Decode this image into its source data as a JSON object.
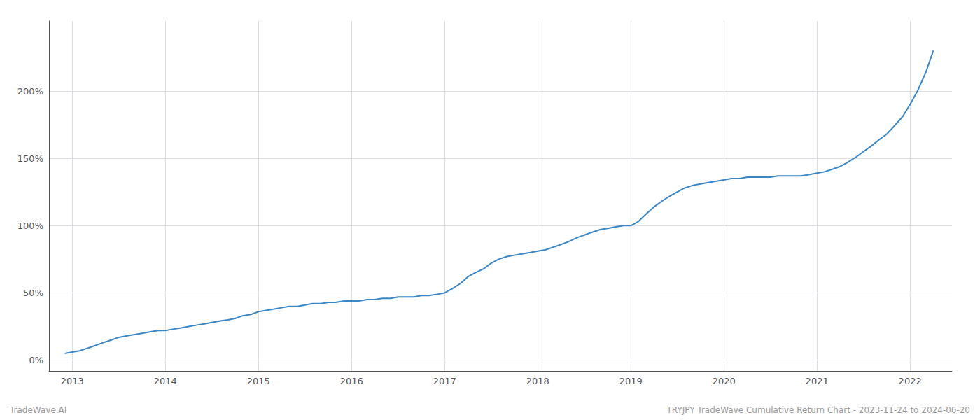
{
  "chart_data": {
    "type": "line",
    "x": [
      2012.92,
      2013.0,
      2013.08,
      2013.17,
      2013.25,
      2013.33,
      2013.42,
      2013.5,
      2013.58,
      2013.67,
      2013.75,
      2013.83,
      2013.92,
      2014.0,
      2014.08,
      2014.17,
      2014.25,
      2014.33,
      2014.42,
      2014.5,
      2014.58,
      2014.67,
      2014.75,
      2014.83,
      2014.92,
      2015.0,
      2015.08,
      2015.17,
      2015.25,
      2015.33,
      2015.42,
      2015.5,
      2015.58,
      2015.67,
      2015.75,
      2015.83,
      2015.92,
      2016.0,
      2016.08,
      2016.17,
      2016.25,
      2016.33,
      2016.42,
      2016.5,
      2016.58,
      2016.67,
      2016.75,
      2016.83,
      2016.92,
      2017.0,
      2017.08,
      2017.17,
      2017.25,
      2017.33,
      2017.42,
      2017.5,
      2017.58,
      2017.67,
      2017.75,
      2017.83,
      2017.92,
      2018.0,
      2018.08,
      2018.17,
      2018.25,
      2018.33,
      2018.42,
      2018.5,
      2018.58,
      2018.67,
      2018.75,
      2018.83,
      2018.92,
      2019.0,
      2019.08,
      2019.17,
      2019.25,
      2019.33,
      2019.42,
      2019.5,
      2019.58,
      2019.67,
      2019.75,
      2019.83,
      2019.92,
      2020.0,
      2020.08,
      2020.17,
      2020.25,
      2020.33,
      2020.42,
      2020.5,
      2020.58,
      2020.67,
      2020.75,
      2020.83,
      2020.92,
      2021.0,
      2021.08,
      2021.17,
      2021.25,
      2021.33,
      2021.42,
      2021.5,
      2021.58,
      2021.67,
      2021.75,
      2021.83,
      2021.92,
      2022.0,
      2022.08,
      2022.17,
      2022.25
    ],
    "values": [
      5,
      6,
      7,
      9,
      11,
      13,
      15,
      17,
      18,
      19,
      20,
      21,
      22,
      22,
      23,
      24,
      25,
      26,
      27,
      28,
      29,
      30,
      31,
      33,
      34,
      36,
      37,
      38,
      39,
      40,
      40,
      41,
      42,
      42,
      43,
      43,
      44,
      44,
      44,
      45,
      45,
      46,
      46,
      47,
      47,
      47,
      48,
      48,
      49,
      50,
      53,
      57,
      62,
      65,
      68,
      72,
      75,
      77,
      78,
      79,
      80,
      81,
      82,
      84,
      86,
      88,
      91,
      93,
      95,
      97,
      98,
      99,
      100,
      100,
      103,
      109,
      114,
      118,
      122,
      125,
      128,
      130,
      131,
      132,
      133,
      134,
      135,
      135,
      136,
      136,
      136,
      136,
      137,
      137,
      137,
      137,
      138,
      139,
      140,
      142,
      144,
      147,
      151,
      155,
      159,
      164,
      168,
      174,
      181,
      190,
      200,
      214,
      230
    ],
    "color": "#3a87c8",
    "xlim": [
      2012.75,
      2022.45
    ],
    "xticks": [
      2013,
      2014,
      2015,
      2016,
      2017,
      2018,
      2019,
      2020,
      2021,
      2022
    ],
    "ylim": [
      -8,
      252
    ],
    "yticks": [
      {
        "value": 0,
        "label": "0%"
      },
      {
        "value": 50,
        "label": "50%"
      },
      {
        "value": 100,
        "label": "100%"
      },
      {
        "value": 150,
        "label": "150%"
      },
      {
        "value": 200,
        "label": "200%"
      }
    ],
    "grid": true,
    "annotations": [
      "TradeWave.AI",
      "TRYJPY TradeWave Cumulative Return Chart - 2023-11-24 to 2024-06-20"
    ]
  }
}
